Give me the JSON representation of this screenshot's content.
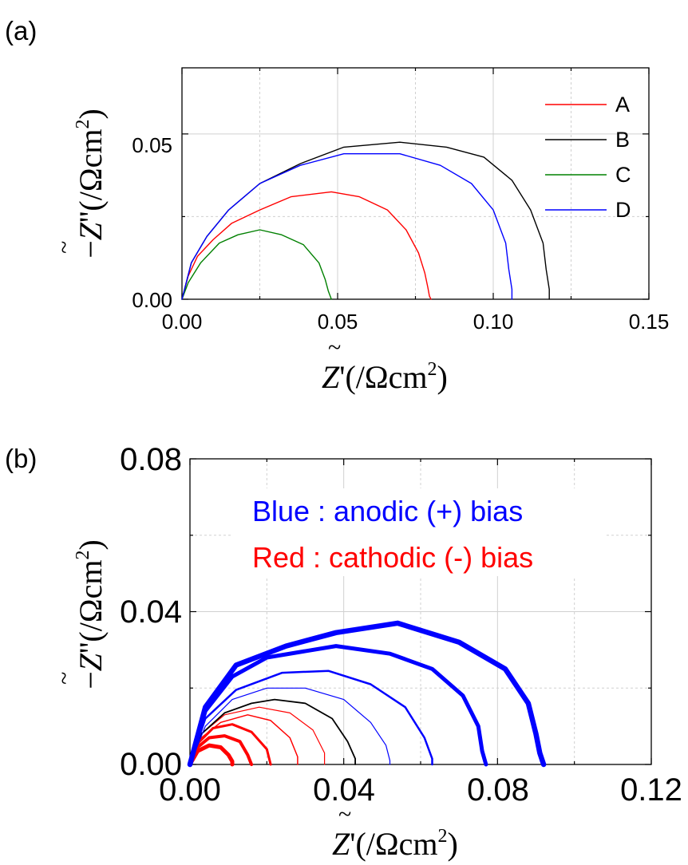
{
  "panels": [
    {
      "panel_label": "(a)",
      "ylabel": {
        "minus": "−",
        "sym": "Z",
        "prime": "''",
        "unit": "(/Ωcm",
        "exp": "2",
        "close": ")"
      },
      "xlabel": {
        "sym": "Z",
        "prime": "'",
        "unit": "(/Ωcm",
        "exp": "2",
        "close": ")"
      },
      "xtick_labels": [
        "0.00",
        "0.05",
        "0.10",
        "0.15"
      ],
      "ytick_labels": [
        "0.00",
        "0.05"
      ],
      "legend": [
        "A",
        "B",
        "C",
        "D"
      ]
    },
    {
      "panel_label": "(b)",
      "ylabel": {
        "minus": "−",
        "sym": "Z",
        "prime": "''",
        "unit": "(/Ωcm",
        "exp": "2",
        "close": ")"
      },
      "xlabel": {
        "sym": "Z",
        "prime": "'",
        "unit": "(/Ωcm",
        "exp": "2",
        "close": ")"
      },
      "xtick_labels": [
        "0.00",
        "0.04",
        "0.08",
        "0.12"
      ],
      "ytick_labels": [
        "0.00",
        "0.04",
        "0.08"
      ],
      "annotations": [
        "Blue : anodic (+) bias",
        "Red : cathodic (-) bias"
      ]
    }
  ],
  "chart_data": [
    {
      "type": "line",
      "xlim": [
        0,
        0.15
      ],
      "ylim": [
        0,
        0.07
      ],
      "xticks": [
        0,
        0.05,
        0.1,
        0.15
      ],
      "yticks": [
        0,
        0.05
      ],
      "grid": true,
      "legend_position": "top-right",
      "series": [
        {
          "name": "A",
          "color": "#ff0000",
          "width": 1.4,
          "points": [
            [
              0,
              0
            ],
            [
              0.002,
              0.007
            ],
            [
              0.005,
              0.013
            ],
            [
              0.01,
              0.018
            ],
            [
              0.016,
              0.023
            ],
            [
              0.025,
              0.027
            ],
            [
              0.035,
              0.031
            ],
            [
              0.048,
              0.0325
            ],
            [
              0.057,
              0.031
            ],
            [
              0.066,
              0.027
            ],
            [
              0.072,
              0.021
            ],
            [
              0.076,
              0.014
            ],
            [
              0.078,
              0.008
            ],
            [
              0.079,
              0.0035
            ],
            [
              0.0795,
              0.001
            ],
            [
              0.08,
              0
            ]
          ]
        },
        {
          "name": "B",
          "color": "#000000",
          "width": 1.4,
          "points": [
            [
              0,
              0
            ],
            [
              0.003,
              0.011
            ],
            [
              0.008,
              0.019
            ],
            [
              0.015,
              0.027
            ],
            [
              0.025,
              0.035
            ],
            [
              0.038,
              0.041
            ],
            [
              0.052,
              0.046
            ],
            [
              0.07,
              0.0475
            ],
            [
              0.085,
              0.046
            ],
            [
              0.097,
              0.043
            ],
            [
              0.106,
              0.036
            ],
            [
              0.112,
              0.027
            ],
            [
              0.116,
              0.017
            ],
            [
              0.117,
              0.009
            ],
            [
              0.118,
              0.003
            ],
            [
              0.118,
              0
            ]
          ]
        },
        {
          "name": "C",
          "color": "#008000",
          "width": 1.4,
          "points": [
            [
              0,
              0
            ],
            [
              0.002,
              0.005
            ],
            [
              0.006,
              0.011
            ],
            [
              0.012,
              0.017
            ],
            [
              0.018,
              0.0195
            ],
            [
              0.025,
              0.021
            ],
            [
              0.032,
              0.0195
            ],
            [
              0.039,
              0.0165
            ],
            [
              0.044,
              0.011
            ],
            [
              0.046,
              0.006
            ],
            [
              0.047,
              0.0025
            ],
            [
              0.048,
              0
            ]
          ]
        },
        {
          "name": "D",
          "color": "#0000ff",
          "width": 1.4,
          "points": [
            [
              0,
              0
            ],
            [
              0.003,
              0.011
            ],
            [
              0.008,
              0.019
            ],
            [
              0.015,
              0.027
            ],
            [
              0.025,
              0.035
            ],
            [
              0.038,
              0.0405
            ],
            [
              0.052,
              0.044
            ],
            [
              0.07,
              0.044
            ],
            [
              0.083,
              0.0405
            ],
            [
              0.093,
              0.035
            ],
            [
              0.1,
              0.027
            ],
            [
              0.104,
              0.017
            ],
            [
              0.105,
              0.009
            ],
            [
              0.106,
              0.003
            ],
            [
              0.106,
              0
            ]
          ]
        }
      ]
    },
    {
      "type": "line",
      "xlim": [
        0,
        0.12
      ],
      "ylim": [
        0,
        0.08
      ],
      "xticks": [
        0,
        0.04,
        0.08,
        0.12
      ],
      "yticks": [
        0,
        0.04,
        0.08
      ],
      "grid": true,
      "series": [
        {
          "color": "#ff0000",
          "width": 5.0,
          "points": [
            [
              0,
              0
            ],
            [
              0.002,
              0.0035
            ],
            [
              0.005,
              0.005
            ],
            [
              0.008,
              0.0045
            ],
            [
              0.01,
              0.0025
            ],
            [
              0.011,
              0.0008
            ],
            [
              0.011,
              0
            ]
          ]
        },
        {
          "color": "#ff0000",
          "width": 4.0,
          "points": [
            [
              0,
              0
            ],
            [
              0.002,
              0.0045
            ],
            [
              0.005,
              0.007
            ],
            [
              0.009,
              0.0075
            ],
            [
              0.013,
              0.006
            ],
            [
              0.015,
              0.0025
            ],
            [
              0.016,
              0
            ]
          ]
        },
        {
          "color": "#ff0000",
          "width": 3.0,
          "points": [
            [
              0,
              0
            ],
            [
              0.002,
              0.0055
            ],
            [
              0.006,
              0.0095
            ],
            [
              0.011,
              0.0105
            ],
            [
              0.016,
              0.0085
            ],
            [
              0.02,
              0.004
            ],
            [
              0.021,
              0
            ]
          ]
        },
        {
          "color": "#ff0000",
          "width": 1.5,
          "points": [
            [
              0,
              0
            ],
            [
              0.003,
              0.007
            ],
            [
              0.008,
              0.011
            ],
            [
              0.015,
              0.013
            ],
            [
              0.021,
              0.0115
            ],
            [
              0.026,
              0.007
            ],
            [
              0.028,
              0.002
            ],
            [
              0.028,
              0
            ]
          ]
        },
        {
          "color": "#ff0000",
          "width": 1.2,
          "points": [
            [
              0,
              0
            ],
            [
              0.003,
              0.008
            ],
            [
              0.009,
              0.013
            ],
            [
              0.018,
              0.015
            ],
            [
              0.026,
              0.0135
            ],
            [
              0.032,
              0.009
            ],
            [
              0.035,
              0.003
            ],
            [
              0.035,
              0
            ]
          ]
        },
        {
          "color": "#000000",
          "width": 1.8,
          "points": [
            [
              0,
              0
            ],
            [
              0.003,
              0.008
            ],
            [
              0.009,
              0.0135
            ],
            [
              0.016,
              0.016
            ],
            [
              0.022,
              0.017
            ],
            [
              0.03,
              0.016
            ],
            [
              0.037,
              0.012
            ],
            [
              0.041,
              0.006
            ],
            [
              0.043,
              0.0015
            ],
            [
              0.043,
              0
            ]
          ]
        },
        {
          "color": "#0000ff",
          "width": 1.2,
          "points": [
            [
              0,
              0
            ],
            [
              0.004,
              0.01
            ],
            [
              0.011,
              0.017
            ],
            [
              0.02,
              0.02
            ],
            [
              0.03,
              0.02
            ],
            [
              0.04,
              0.017
            ],
            [
              0.047,
              0.011
            ],
            [
              0.051,
              0.005
            ],
            [
              0.052,
              0.001
            ],
            [
              0.052,
              0
            ]
          ]
        },
        {
          "color": "#0000ff",
          "width": 2.5,
          "points": [
            [
              0,
              0
            ],
            [
              0.004,
              0.012
            ],
            [
              0.012,
              0.0195
            ],
            [
              0.024,
              0.024
            ],
            [
              0.036,
              0.0245
            ],
            [
              0.047,
              0.021
            ],
            [
              0.056,
              0.015
            ],
            [
              0.061,
              0.007
            ],
            [
              0.063,
              0.0015
            ],
            [
              0.063,
              0
            ]
          ]
        },
        {
          "color": "#0000ff",
          "width": 5.0,
          "points": [
            [
              0,
              0
            ],
            [
              0.004,
              0.014
            ],
            [
              0.011,
              0.023
            ],
            [
              0.02,
              0.028
            ],
            [
              0.038,
              0.031
            ],
            [
              0.052,
              0.029
            ],
            [
              0.063,
              0.025
            ],
            [
              0.071,
              0.018
            ],
            [
              0.075,
              0.01
            ],
            [
              0.076,
              0.0035
            ],
            [
              0.077,
              0
            ]
          ]
        },
        {
          "color": "#0000ff",
          "width": 6.5,
          "points": [
            [
              0,
              0
            ],
            [
              0.004,
              0.015
            ],
            [
              0.012,
              0.026
            ],
            [
              0.025,
              0.031
            ],
            [
              0.038,
              0.0345
            ],
            [
              0.054,
              0.037
            ],
            [
              0.07,
              0.032
            ],
            [
              0.082,
              0.025
            ],
            [
              0.088,
              0.016
            ],
            [
              0.09,
              0.008
            ],
            [
              0.091,
              0.003
            ],
            [
              0.092,
              0
            ]
          ]
        }
      ]
    }
  ]
}
